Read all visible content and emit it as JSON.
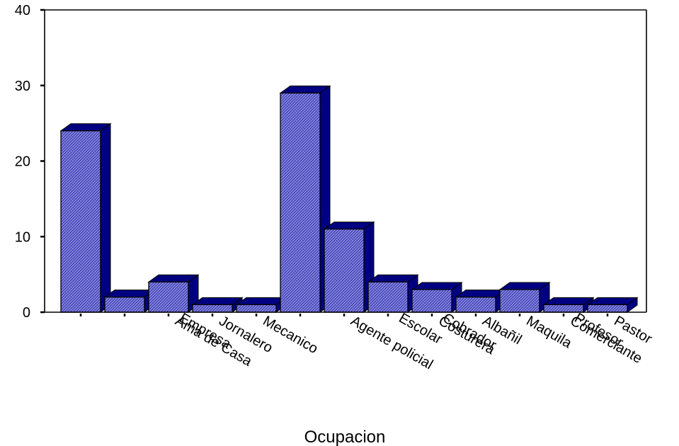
{
  "chart_data": {
    "type": "bar",
    "style": "3d",
    "title": "",
    "xlabel": "Ocupacion",
    "ylabel": "",
    "ylim": [
      0,
      40
    ],
    "yticks": [
      0,
      10,
      20,
      30,
      40
    ],
    "grid": false,
    "legend": "none",
    "categories": [
      "",
      "",
      "Ama de Casa",
      "Jornalero",
      "Mecanico",
      "",
      "Agente policial",
      "",
      "Costurera",
      "Albañil",
      "Maquila",
      "Comerciante",
      "Pastor"
    ],
    "overlapping_tick_text": [
      "Empresa",
      "Escolar",
      "Cobrador",
      "Profesor"
    ],
    "values": [
      24,
      2,
      4,
      1,
      1,
      29,
      11,
      4,
      3,
      2,
      3,
      1,
      1
    ],
    "colors": {
      "front": "#8080d8",
      "top": "#000080",
      "side": "#000080",
      "edge": "#000000",
      "pattern_line": "#2a2aa0"
    }
  }
}
